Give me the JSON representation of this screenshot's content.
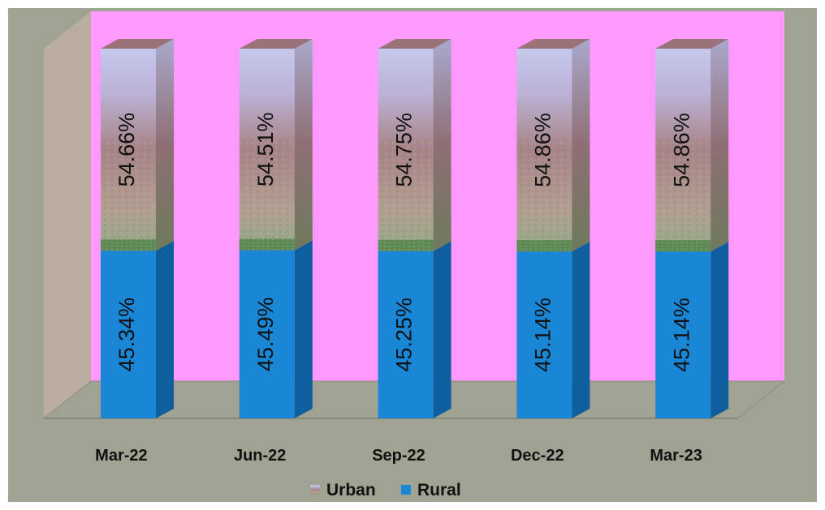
{
  "chart_data": {
    "type": "bar",
    "stacked": true,
    "percent": true,
    "three_d": true,
    "categories": [
      "Mar-22",
      "Jun-22",
      "Sep-22",
      "Dec-22",
      "Mar-23"
    ],
    "series": [
      {
        "name": "Rural",
        "values": [
          45.34,
          45.49,
          45.25,
          45.14,
          45.14
        ],
        "labels": [
          "45.34%",
          "45.49%",
          "45.25%",
          "45.14%",
          "45.14%"
        ],
        "color": "#1a86d6",
        "fill": "solid"
      },
      {
        "name": "Urban",
        "values": [
          54.66,
          54.51,
          54.75,
          54.86,
          54.86
        ],
        "labels": [
          "54.66%",
          "54.51%",
          "54.75%",
          "54.86%",
          "54.86%"
        ],
        "color": "#b48e8c",
        "fill": "landscape-picture"
      }
    ],
    "ylim": [
      0,
      100
    ],
    "title": "",
    "xlabel": "",
    "ylabel": "",
    "grid": false,
    "legend": {
      "position": "bottom",
      "order": [
        "Urban",
        "Rural"
      ]
    },
    "data_label_rotation": "vertical",
    "colors": {
      "chart_background": "#a0a292",
      "plot_back_wall": "#ff99ff",
      "side_wall": "#b9ad9f",
      "floor": "#a0a292"
    }
  }
}
